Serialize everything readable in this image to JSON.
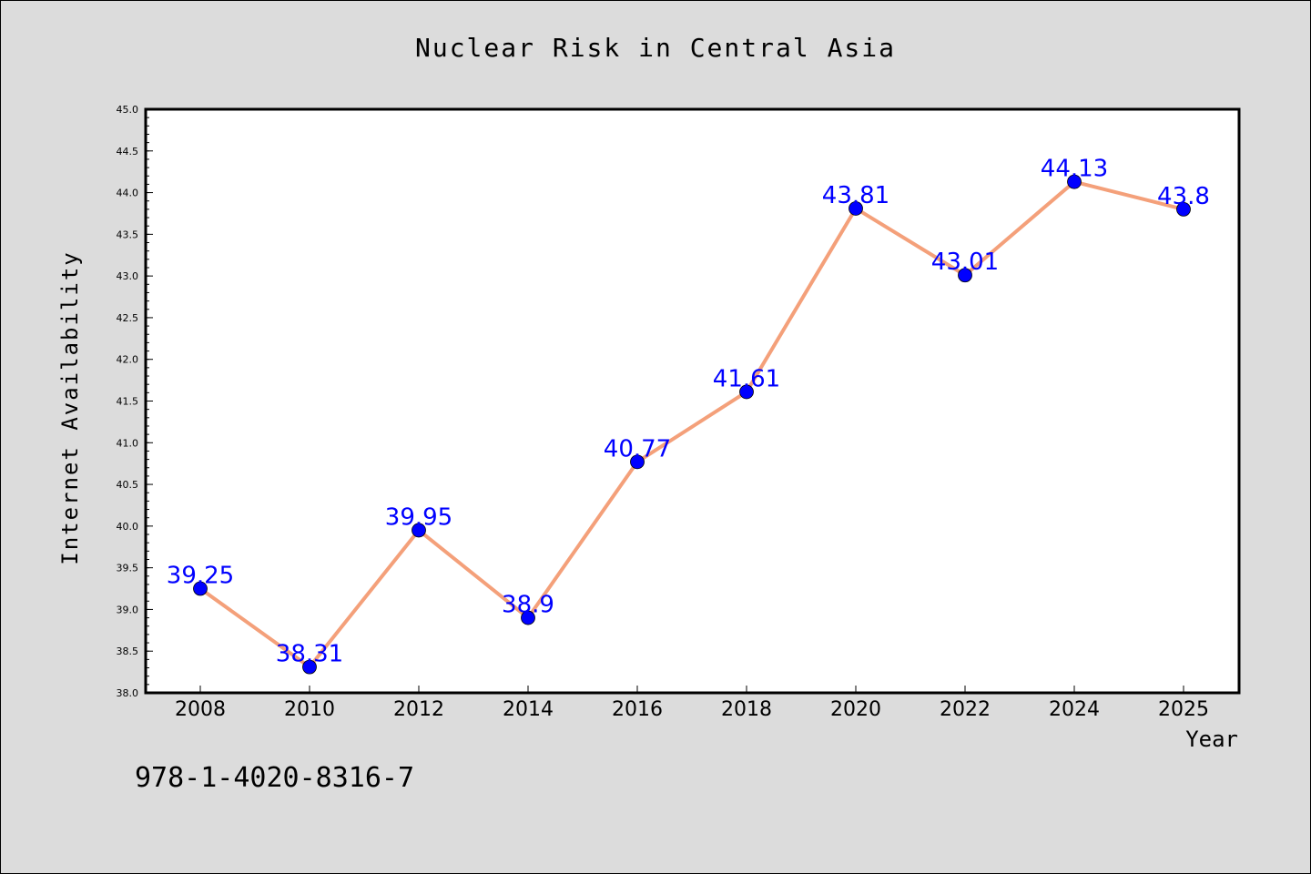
{
  "figure": {
    "background": "#dcdcdc",
    "caption": "978-1-4020-8316-7"
  },
  "chart_data": {
    "type": "line",
    "title": "Nuclear Risk in Central Asia",
    "xlabel": "Year",
    "ylabel": "Internet Availability",
    "categories": [
      "2008",
      "2010",
      "2012",
      "2014",
      "2016",
      "2018",
      "2020",
      "2022",
      "2024",
      "2025"
    ],
    "series": [
      {
        "values": [
          39.25,
          38.31,
          39.95,
          38.9,
          40.77,
          41.61,
          43.81,
          43.01,
          44.13,
          43.8
        ],
        "labels": [
          "39.25",
          "38.31",
          "39.95",
          "38.9",
          "40.77",
          "41.61",
          "43.81",
          "43.01",
          "44.13",
          "43.8"
        ],
        "line_color": "#f4a07a",
        "marker_color": "#0000ff",
        "label_color": "#0000ff"
      }
    ],
    "ylim": [
      38.0,
      45.0
    ],
    "yticks": [
      "38.0",
      "38.5",
      "39.0",
      "39.5",
      "40.0",
      "40.5",
      "41.0",
      "41.5",
      "42.0",
      "42.5",
      "43.0",
      "43.5",
      "44.0",
      "44.5",
      "45.0"
    ],
    "grid": false,
    "legend": "none"
  }
}
